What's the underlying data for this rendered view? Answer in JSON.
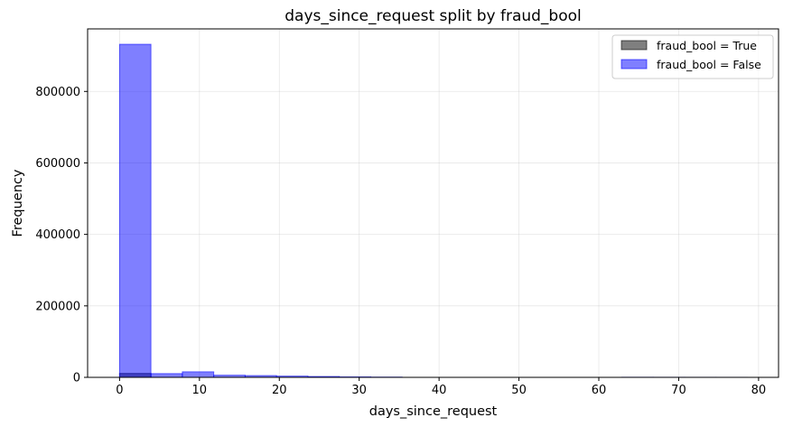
{
  "chart_data": {
    "type": "bar",
    "title": "days_since_request split by fraud_bool",
    "xlabel": "days_since_request",
    "ylabel": "Frequency",
    "xlim": [
      -4.0,
      82.5
    ],
    "ylim": [
      0,
      975000
    ],
    "xticks": [
      0,
      10,
      20,
      30,
      40,
      50,
      60,
      70,
      80
    ],
    "yticks": [
      0,
      200000,
      400000,
      600000,
      800000
    ],
    "grid": true,
    "legend_position": "top-right",
    "bin_edges": [
      0.0,
      3.93,
      7.86,
      11.79,
      15.72,
      19.65,
      23.58,
      27.51,
      31.44,
      35.37,
      39.3,
      43.23,
      47.16,
      51.09,
      55.02,
      58.95,
      62.88,
      66.81,
      70.74,
      74.67,
      78.6
    ],
    "series": [
      {
        "name": "fraud_bool = True",
        "color": "#000000",
        "values": [
          11000,
          0,
          0,
          0,
          0,
          0,
          0,
          0,
          0,
          0,
          0,
          0,
          0,
          0,
          0,
          0,
          0,
          0,
          0,
          0
        ]
      },
      {
        "name": "fraud_bool = False",
        "color": "#0000ff",
        "values": [
          932000,
          10500,
          15500,
          6000,
          5000,
          3500,
          2500,
          1500,
          800,
          0,
          0,
          0,
          0,
          0,
          0,
          0,
          300,
          200,
          150,
          100
        ]
      }
    ]
  }
}
